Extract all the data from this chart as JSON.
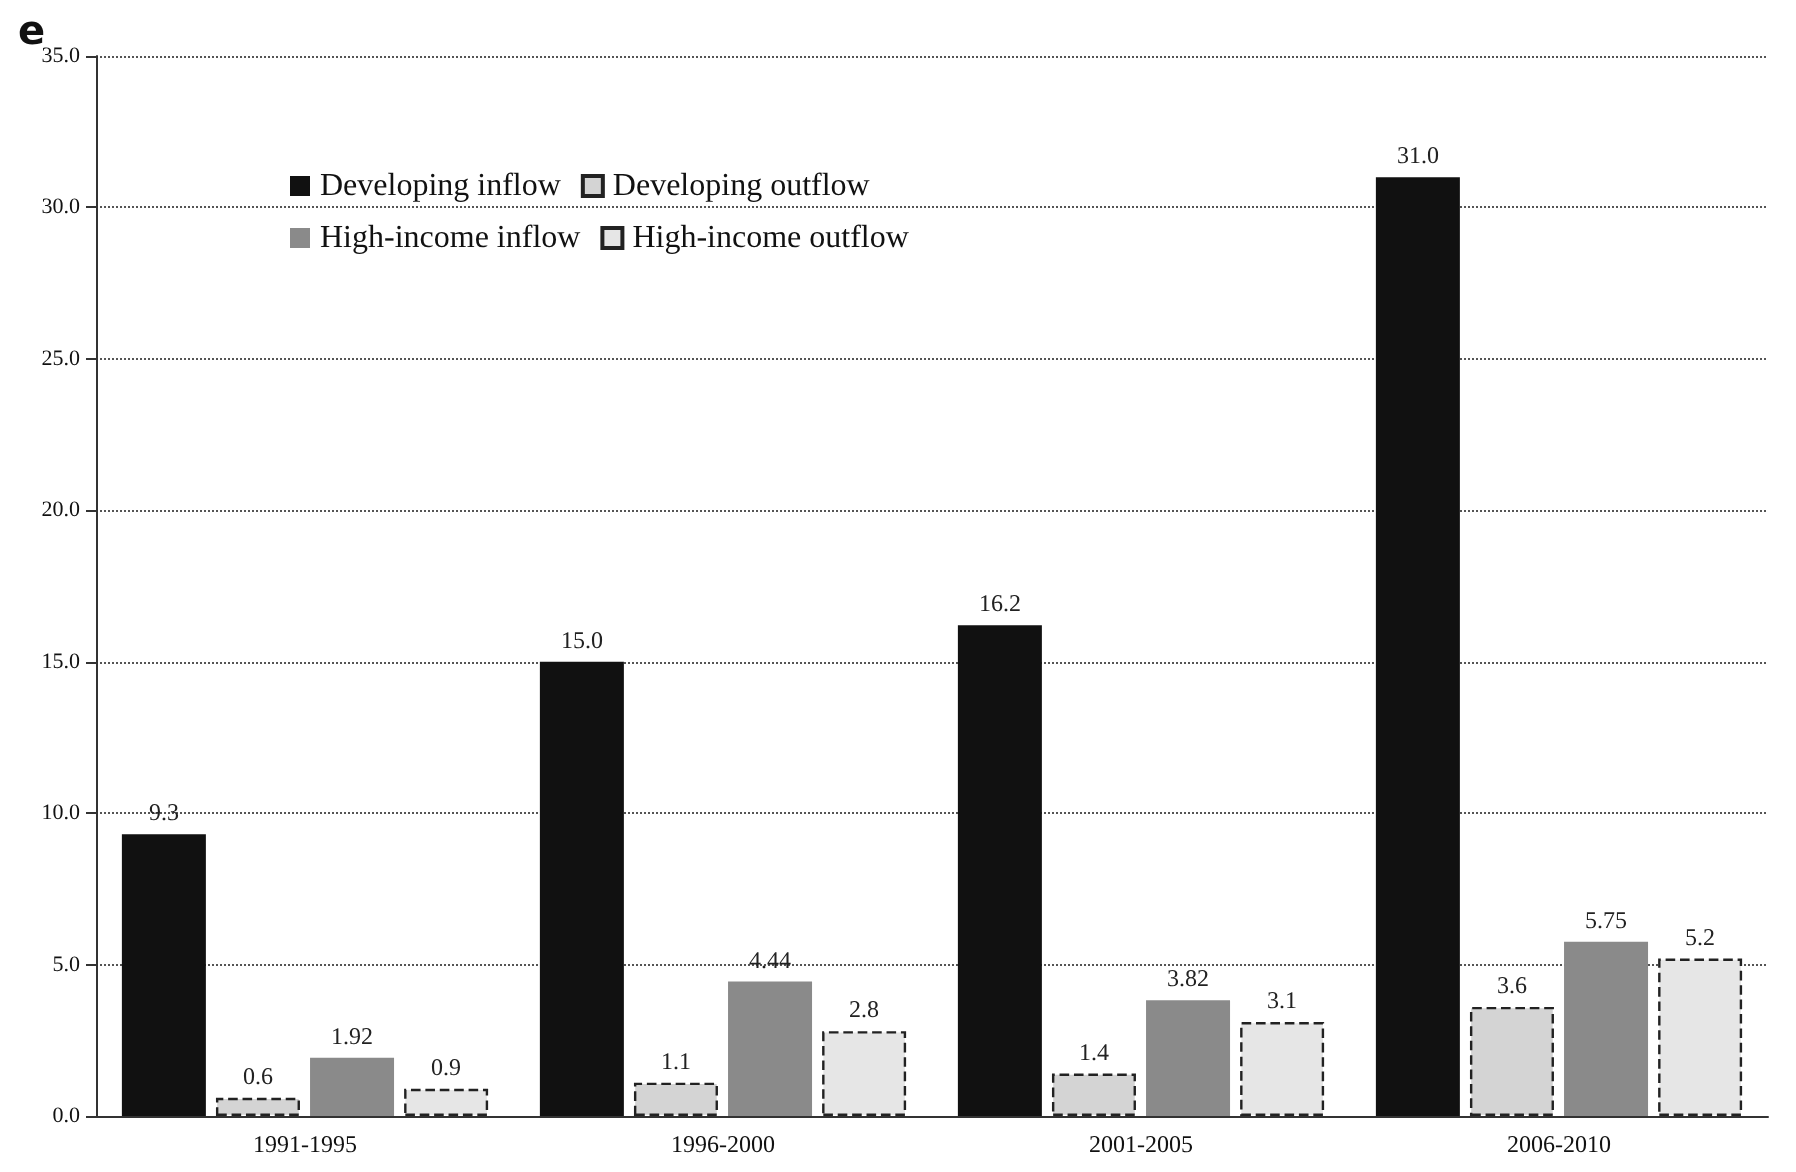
{
  "chart_data": {
    "type": "bar",
    "title": "e",
    "categories": [
      "1991-1995",
      "1996-2000",
      "2001-2005",
      "2006-2010"
    ],
    "series": [
      {
        "name": "Developing inflow",
        "color": "#111111",
        "values": [
          9.3,
          15.0,
          16.2,
          31.0
        ],
        "value_labels": [
          "9.3",
          "15.0",
          "16.2",
          "31.0"
        ]
      },
      {
        "name": "Developing outflow",
        "color": "#d4d4d4",
        "line_style": "dashed",
        "values": [
          0.6,
          1.1,
          1.4,
          3.6
        ],
        "value_labels": [
          "0.6",
          "1.1",
          "1.4",
          "3.6"
        ]
      },
      {
        "name": "High-income inflow",
        "color": "#8a8a8a",
        "values": [
          1.92,
          4.44,
          3.82,
          5.75
        ],
        "value_labels": [
          "1.92",
          "4.44",
          "3.82",
          "5.75"
        ]
      },
      {
        "name": "High-income outflow",
        "color": "#e6e6e6",
        "line_style": "dashed",
        "values": [
          0.9,
          2.8,
          3.1,
          5.2
        ],
        "value_labels": [
          "0.9",
          "2.8",
          "3.1",
          "5.2"
        ]
      }
    ],
    "ylim": [
      0,
      35
    ],
    "yticks": [
      {
        "value": 0,
        "label": "0.0"
      },
      {
        "value": 5,
        "label": "5.0"
      },
      {
        "value": 10,
        "label": "10.0"
      },
      {
        "value": 15,
        "label": "15.0"
      },
      {
        "value": 20,
        "label": "20.0"
      },
      {
        "value": 25,
        "label": "25.0"
      },
      {
        "value": 30,
        "label": "30.0"
      },
      {
        "value": 35,
        "label": "35.0"
      }
    ],
    "grid": "y",
    "legend": "top left"
  }
}
